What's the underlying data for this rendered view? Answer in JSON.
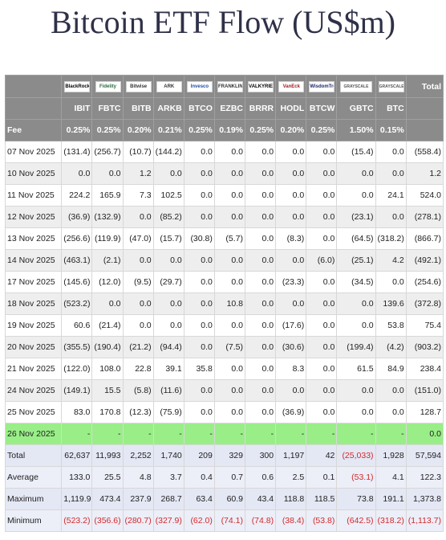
{
  "title": "Bitcoin ETF Flow (US$m)",
  "columns": [
    {
      "logo": "BlackRock",
      "code": "IBIT",
      "fee": "0.25%"
    },
    {
      "logo": "Fidelity",
      "code": "FBTC",
      "fee": "0.25%"
    },
    {
      "logo": "Bitwise",
      "code": "BITB",
      "fee": "0.20%"
    },
    {
      "logo": "ARK",
      "code": "ARKB",
      "fee": "0.21%"
    },
    {
      "logo": "Invesco",
      "code": "BTCO",
      "fee": "0.25%"
    },
    {
      "logo": "FRANKLIN",
      "code": "EZBC",
      "fee": "0.19%"
    },
    {
      "logo": "VALKYRIE",
      "code": "BRRR",
      "fee": "0.25%"
    },
    {
      "logo": "VanEck",
      "code": "HODL",
      "fee": "0.20%"
    },
    {
      "logo": "WisdomTree",
      "code": "BTCW",
      "fee": "0.25%"
    },
    {
      "logo": "GRAYSCALE",
      "code": "GBTC",
      "fee": "1.50%"
    },
    {
      "logo": "GRAYSCALE",
      "code": "BTC",
      "fee": "0.15%"
    }
  ],
  "total_header": "Total",
  "fee_label": "Fee",
  "rows": [
    {
      "date": "07 Nov 2025",
      "values": [
        "(131.4)",
        "(256.7)",
        "(10.7)",
        "(144.2)",
        "0.0",
        "0.0",
        "0.0",
        "0.0",
        "0.0",
        "(15.4)",
        "0.0",
        "(558.4)"
      ]
    },
    {
      "date": "10 Nov 2025",
      "values": [
        "0.0",
        "0.0",
        "1.2",
        "0.0",
        "0.0",
        "0.0",
        "0.0",
        "0.0",
        "0.0",
        "0.0",
        "0.0",
        "1.2"
      ]
    },
    {
      "date": "11 Nov 2025",
      "values": [
        "224.2",
        "165.9",
        "7.3",
        "102.5",
        "0.0",
        "0.0",
        "0.0",
        "0.0",
        "0.0",
        "0.0",
        "24.1",
        "524.0"
      ]
    },
    {
      "date": "12 Nov 2025",
      "values": [
        "(36.9)",
        "(132.9)",
        "0.0",
        "(85.2)",
        "0.0",
        "0.0",
        "0.0",
        "0.0",
        "0.0",
        "(23.1)",
        "0.0",
        "(278.1)"
      ]
    },
    {
      "date": "13 Nov 2025",
      "values": [
        "(256.6)",
        "(119.9)",
        "(47.0)",
        "(15.7)",
        "(30.8)",
        "(5.7)",
        "0.0",
        "(8.3)",
        "0.0",
        "(64.5)",
        "(318.2)",
        "(866.7)"
      ]
    },
    {
      "date": "14 Nov 2025",
      "values": [
        "(463.1)",
        "(2.1)",
        "0.0",
        "0.0",
        "0.0",
        "0.0",
        "0.0",
        "0.0",
        "(6.0)",
        "(25.1)",
        "4.2",
        "(492.1)"
      ]
    },
    {
      "date": "17 Nov 2025",
      "values": [
        "(145.6)",
        "(12.0)",
        "(9.5)",
        "(29.7)",
        "0.0",
        "0.0",
        "0.0",
        "(23.3)",
        "0.0",
        "(34.5)",
        "0.0",
        "(254.6)"
      ]
    },
    {
      "date": "18 Nov 2025",
      "values": [
        "(523.2)",
        "0.0",
        "0.0",
        "0.0",
        "0.0",
        "10.8",
        "0.0",
        "0.0",
        "0.0",
        "0.0",
        "139.6",
        "(372.8)"
      ]
    },
    {
      "date": "19 Nov 2025",
      "values": [
        "60.6",
        "(21.4)",
        "0.0",
        "0.0",
        "0.0",
        "0.0",
        "0.0",
        "(17.6)",
        "0.0",
        "0.0",
        "53.8",
        "75.4"
      ]
    },
    {
      "date": "20 Nov 2025",
      "values": [
        "(355.5)",
        "(190.4)",
        "(21.2)",
        "(94.4)",
        "0.0",
        "(7.5)",
        "0.0",
        "(30.6)",
        "0.0",
        "(199.4)",
        "(4.2)",
        "(903.2)"
      ]
    },
    {
      "date": "21 Nov 2025",
      "values": [
        "(122.0)",
        "108.0",
        "22.8",
        "39.1",
        "35.8",
        "0.0",
        "0.0",
        "8.3",
        "0.0",
        "61.5",
        "84.9",
        "238.4"
      ]
    },
    {
      "date": "24 Nov 2025",
      "values": [
        "(149.1)",
        "15.5",
        "(5.8)",
        "(11.6)",
        "0.0",
        "0.0",
        "0.0",
        "0.0",
        "0.0",
        "0.0",
        "0.0",
        "(151.0)"
      ]
    },
    {
      "date": "25 Nov 2025",
      "values": [
        "83.0",
        "170.8",
        "(12.3)",
        "(75.9)",
        "0.0",
        "0.0",
        "0.0",
        "(36.9)",
        "0.0",
        "0.0",
        "0.0",
        "128.7"
      ]
    },
    {
      "date": "26 Nov 2025",
      "values": [
        "-",
        "-",
        "-",
        "-",
        "-",
        "-",
        "-",
        "-",
        "-",
        "-",
        "-",
        "0.0"
      ],
      "highlight": true
    }
  ],
  "stats": [
    {
      "label": "Total",
      "values": [
        "62,637",
        "11,993",
        "2,252",
        "1,740",
        "209",
        "329",
        "300",
        "1,197",
        "42",
        "(25,033)",
        "1,928",
        "57,594"
      ]
    },
    {
      "label": "Average",
      "values": [
        "133.0",
        "25.5",
        "4.8",
        "3.7",
        "0.4",
        "0.7",
        "0.6",
        "2.5",
        "0.1",
        "(53.1)",
        "4.1",
        "122.3"
      ]
    },
    {
      "label": "Maximum",
      "values": [
        "1,119.9",
        "473.4",
        "237.9",
        "268.7",
        "63.4",
        "60.9",
        "43.4",
        "118.8",
        "118.5",
        "73.8",
        "191.1",
        "1,373.8"
      ]
    },
    {
      "label": "Minimum",
      "values": [
        "(523.2)",
        "(356.6)",
        "(280.7)",
        "(327.9)",
        "(62.0)",
        "(74.1)",
        "(74.8)",
        "(38.4)",
        "(53.8)",
        "(642.5)",
        "(318.2)",
        "(1,113.7)"
      ]
    }
  ],
  "colors": {
    "header_bg": "#8b8b8b",
    "negative": "#d22a2a",
    "highlight": "#99ee88",
    "stats_bg": "#e4e7f4",
    "title": "#2f3149"
  }
}
